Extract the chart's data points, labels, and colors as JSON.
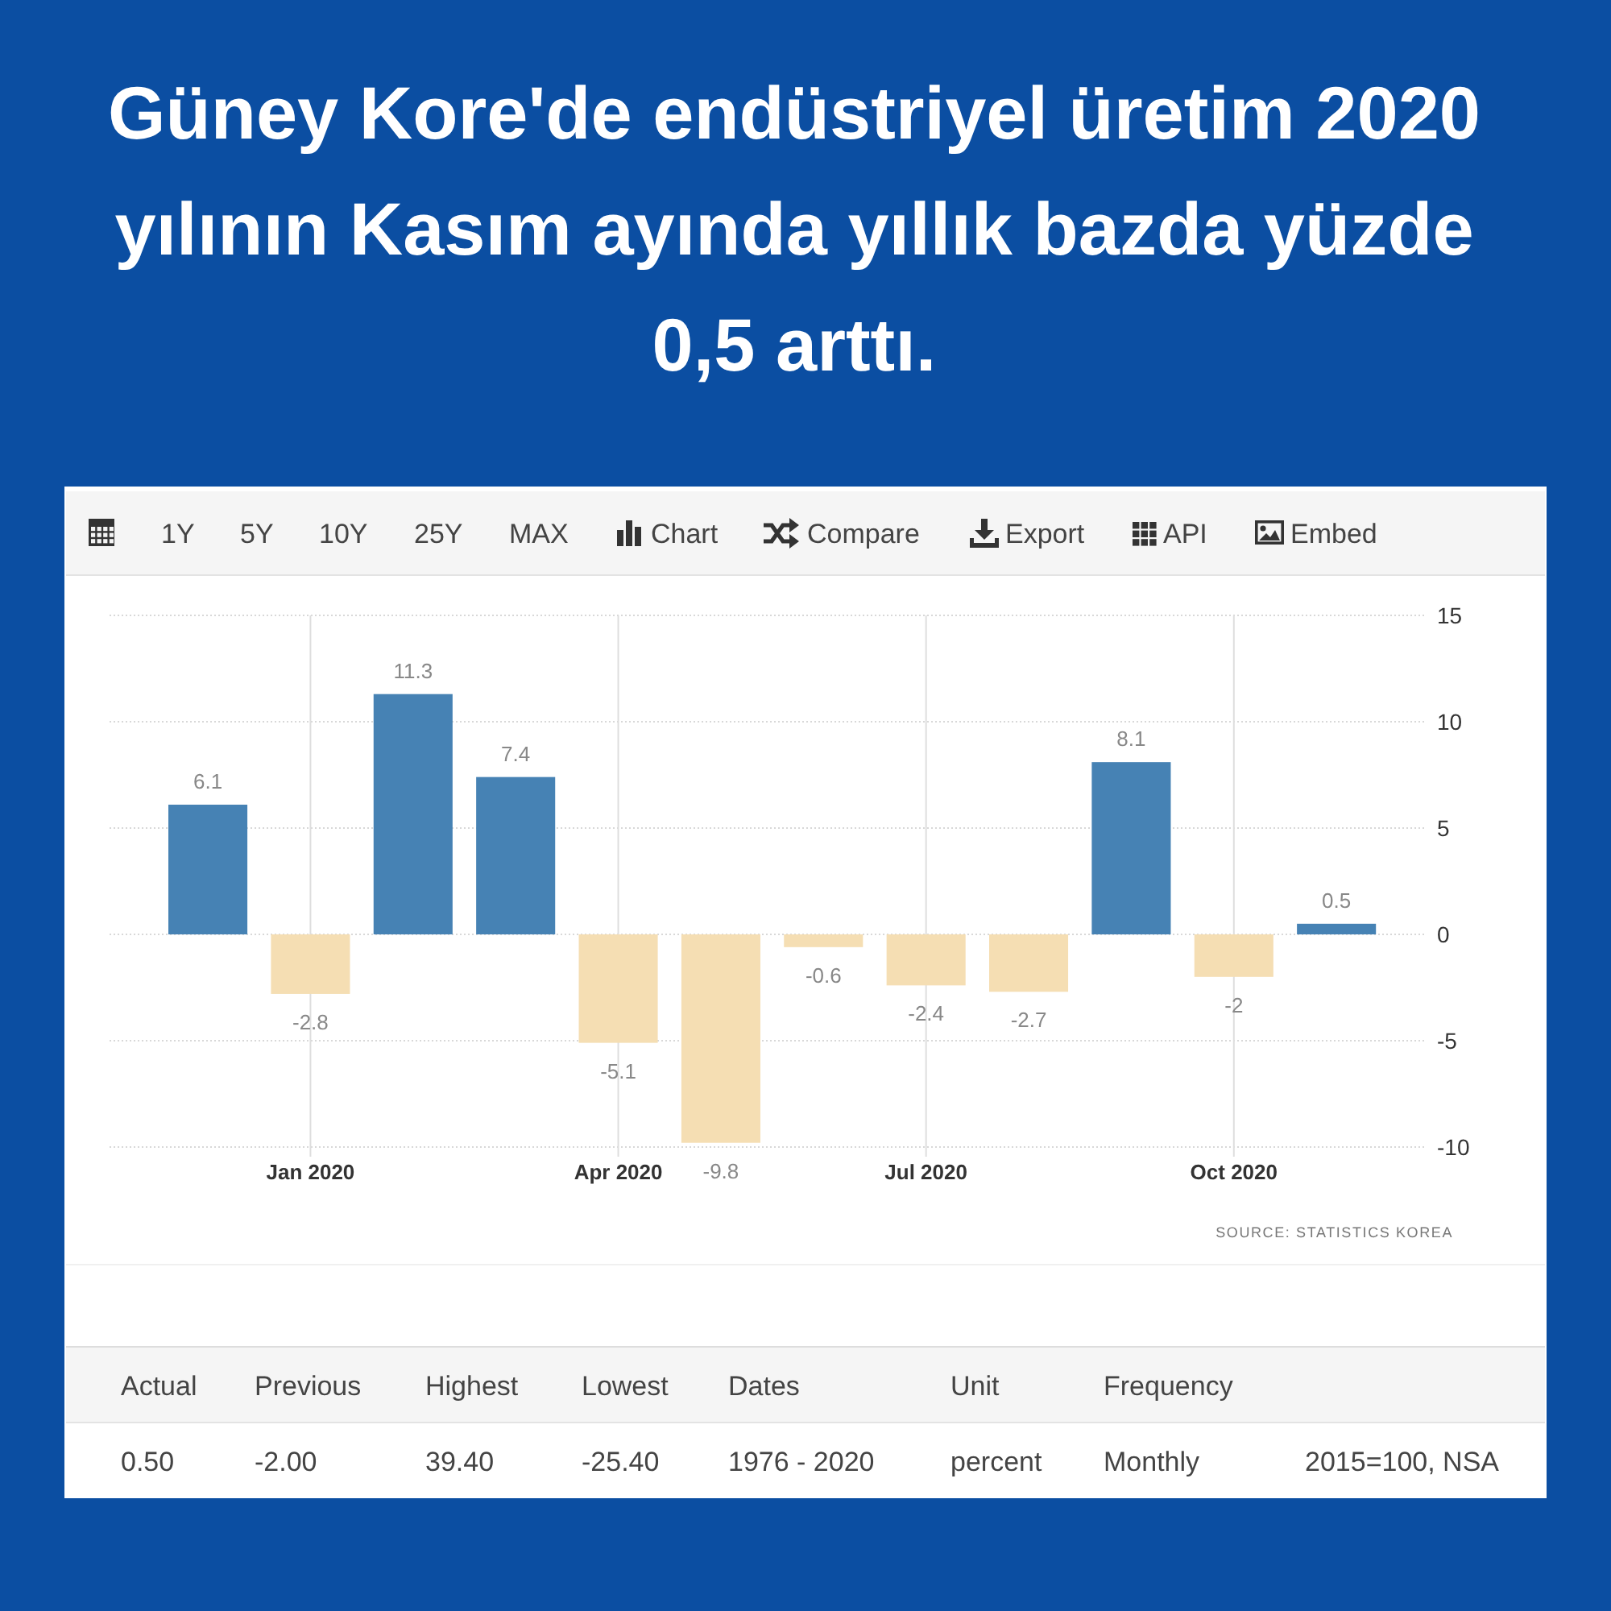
{
  "chart_data": {
    "type": "bar",
    "title": "Güney Kore'de endüstriyel üretim 2020 yılının Kasım ayında yıllık bazda yüzde 0,5 arttı.",
    "categories": [
      null,
      "Jan 2020",
      null,
      null,
      "Apr 2020",
      null,
      null,
      "Jul 2020",
      null,
      null,
      "Oct 2020",
      null
    ],
    "values": [
      6.1,
      -2.8,
      11.3,
      7.4,
      -5.1,
      -9.8,
      -0.6,
      -2.4,
      -2.7,
      8.1,
      -2,
      0.5
    ],
    "colors": [
      "#4682b4",
      "#f5deb3",
      "#4682b4",
      "#4682b4",
      "#f5deb3",
      "#f5deb3",
      "#f5deb3",
      "#f5deb3",
      "#f5deb3",
      "#4682b4",
      "#f5deb3",
      "#4682b4"
    ],
    "ylim": [
      -10,
      15
    ],
    "yticks": [
      -10,
      -5,
      0,
      5,
      10,
      15
    ],
    "grid": true,
    "data_labels": true,
    "annotations": [
      "1Y",
      "5Y",
      "10Y",
      "25Y",
      "MAX",
      "Chart",
      "Compare",
      "Export",
      "API",
      "Embed",
      "SOURCE: STATISTICS KOREA",
      "Actual",
      "Previous",
      "Highest",
      "Lowest",
      "Dates",
      "Unit",
      "Frequency",
      "0.50",
      "-2.00",
      "39.40",
      "-25.40",
      "1976 - 2020",
      "percent",
      "Monthly",
      "2015=100, NSA"
    ]
  }
}
